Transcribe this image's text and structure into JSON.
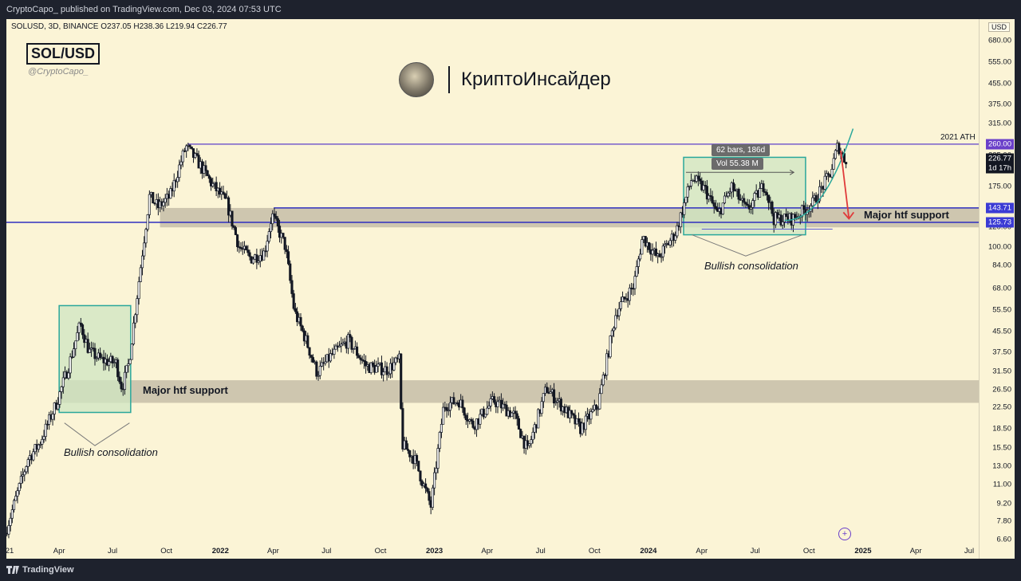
{
  "header": {
    "publish_line": "CryptoCapo_ published on TradingView.com, Dec 03, 2024 07:53 UTC"
  },
  "symbol": {
    "info": "SOLUSD, 3D, BINANCE  O237.05  H238.36  L219.94  C226.77",
    "badge": "SOL/USD",
    "handle": "@CryptoCapo_"
  },
  "brand": {
    "name": "КриптоИнсайдер",
    "avatar_icon": "portrait-avatar-icon"
  },
  "footer": {
    "logo": "TradingView",
    "logo_icon": "tradingview-logo-icon"
  },
  "colors": {
    "background": "#fbf4d6",
    "bull_candle": "#ffffff",
    "bear_candle": "#131722",
    "support_zone": "#c9c1ab",
    "consolidation_box": "#cfe6c1",
    "consolidation_border": "#2aa79b",
    "ath_line": "#5c3fc9",
    "support_line": "#2f2fbf",
    "arrow": "#e03a3a",
    "curve": "#2aa79b",
    "tag_ath": "#6a3fc9",
    "tag_price": "#131722",
    "tag_support": "#3b3bd4"
  },
  "chart_data": {
    "type": "candlestick",
    "title": "",
    "scale": "log",
    "price_axis": {
      "currency": "USD",
      "ticks": [
        6.6,
        7.8,
        9.2,
        11.0,
        13.0,
        15.5,
        18.5,
        22.5,
        26.5,
        31.5,
        37.5,
        45.5,
        55.5,
        68.0,
        84.0,
        100.0,
        120.0,
        175.0,
        235.0,
        315.0,
        375.0,
        455.0,
        555.0,
        680.0
      ],
      "tick_labels": [
        "6.60",
        "7.80",
        "9.20",
        "11.00",
        "13.00",
        "15.50",
        "18.50",
        "22.50",
        "26.50",
        "31.50",
        "37.50",
        "45.50",
        "55.50",
        "68.00",
        "84.00",
        "100.00",
        "120.00",
        "175.00",
        "235.00",
        "315.00",
        "375.00",
        "455.00",
        "555.00",
        "680.00"
      ]
    },
    "time_axis": {
      "labels": [
        "21",
        "Apr",
        "Jul",
        "Oct",
        "2022",
        "Apr",
        "Jul",
        "Oct",
        "2023",
        "Apr",
        "Jul",
        "Oct",
        "2024",
        "Apr",
        "Jul",
        "Oct",
        "2025",
        "Apr",
        "Jul"
      ],
      "dates": [
        "2021-01-01",
        "2021-04-01",
        "2021-07-01",
        "2021-10-01",
        "2022-01-01",
        "2022-04-01",
        "2022-07-01",
        "2022-10-01",
        "2023-01-01",
        "2023-04-01",
        "2023-07-01",
        "2023-10-01",
        "2024-01-01",
        "2024-04-01",
        "2024-07-01",
        "2024-10-01",
        "2025-01-01",
        "2025-04-01",
        "2025-07-01"
      ]
    },
    "price_path": [
      [
        "2021-01-02",
        7.0
      ],
      [
        "2021-02-10",
        14.0
      ],
      [
        "2021-03-01",
        16.0
      ],
      [
        "2021-04-01",
        24.0
      ],
      [
        "2021-04-20",
        33.0
      ],
      [
        "2021-05-10",
        49.0
      ],
      [
        "2021-05-25",
        38.0
      ],
      [
        "2021-06-15",
        35.0
      ],
      [
        "2021-07-10",
        34.0
      ],
      [
        "2021-07-20",
        27.0
      ],
      [
        "2021-08-01",
        34.0
      ],
      [
        "2021-08-20",
        80.0
      ],
      [
        "2021-09-05",
        160.0
      ],
      [
        "2021-09-20",
        145.0
      ],
      [
        "2021-10-10",
        160.0
      ],
      [
        "2021-11-06",
        255.0
      ],
      [
        "2021-11-30",
        215.0
      ],
      [
        "2021-12-20",
        180.0
      ],
      [
        "2022-01-15",
        150.0
      ],
      [
        "2022-02-05",
        100.0
      ],
      [
        "2022-02-25",
        90.0
      ],
      [
        "2022-03-20",
        95.0
      ],
      [
        "2022-04-02",
        135.0
      ],
      [
        "2022-04-25",
        100.0
      ],
      [
        "2022-05-10",
        55.0
      ],
      [
        "2022-05-30",
        42.0
      ],
      [
        "2022-06-18",
        31.0
      ],
      [
        "2022-07-10",
        36.0
      ],
      [
        "2022-08-10",
        42.0
      ],
      [
        "2022-09-10",
        33.0
      ],
      [
        "2022-10-15",
        32.0
      ],
      [
        "2022-11-05",
        35.0
      ],
      [
        "2022-11-10",
        16.0
      ],
      [
        "2022-12-01",
        14.0
      ],
      [
        "2022-12-29",
        9.0
      ],
      [
        "2023-01-20",
        23.0
      ],
      [
        "2023-02-15",
        24.0
      ],
      [
        "2023-03-10",
        19.0
      ],
      [
        "2023-04-15",
        24.0
      ],
      [
        "2023-05-20",
        21.0
      ],
      [
        "2023-06-12",
        15.0
      ],
      [
        "2023-07-14",
        27.0
      ],
      [
        "2023-08-15",
        22.0
      ],
      [
        "2023-09-10",
        18.5
      ],
      [
        "2023-10-10",
        23.0
      ],
      [
        "2023-11-10",
        55.0
      ],
      [
        "2023-12-10",
        70.0
      ],
      [
        "2023-12-25",
        110.0
      ],
      [
        "2024-01-20",
        90.0
      ],
      [
        "2024-02-20",
        115.0
      ],
      [
        "2024-03-18",
        190.0
      ],
      [
        "2024-04-10",
        170.0
      ],
      [
        "2024-05-01",
        135.0
      ],
      [
        "2024-05-25",
        175.0
      ],
      [
        "2024-06-20",
        140.0
      ],
      [
        "2024-07-20",
        180.0
      ],
      [
        "2024-08-05",
        130.0
      ],
      [
        "2024-09-06",
        130.0
      ],
      [
        "2024-10-10",
        150.0
      ],
      [
        "2024-11-10",
        200.0
      ],
      [
        "2024-11-22",
        258.0
      ],
      [
        "2024-12-03",
        226.77
      ]
    ],
    "ohlc_last": {
      "open": 237.05,
      "high": 238.36,
      "low": 219.94,
      "close": 226.77
    },
    "price_tags": [
      {
        "label": "260.00",
        "value": 260.0,
        "color_key": "tag_ath"
      },
      {
        "label": "226.77",
        "value": 226.77,
        "color_key": "tag_price",
        "sublabel": "1d 17h"
      },
      {
        "label": "143.71",
        "value": 143.71,
        "color_key": "tag_support"
      },
      {
        "label": "125.73",
        "value": 125.73,
        "color_key": "tag_support"
      }
    ],
    "annotations": {
      "ath_label": "2021 ATH",
      "major_support_label": "Major htf support",
      "bullish_consolidation_label": "Bullish consolidation",
      "measure_tooltip_line1": "62 bars, 186d",
      "measure_tooltip_line2": "Vol 55.38 M"
    },
    "zones": {
      "upper_support": {
        "low": 120.0,
        "high": 143.71,
        "start": "2021-09-20",
        "end": "2025-07-31"
      },
      "lower_support": {
        "low": 23.5,
        "high": 29.0,
        "start": "2021-04-01",
        "end": "2025-07-31"
      },
      "box_2021": {
        "low": 21.5,
        "high": 58.0,
        "start": "2021-04-01",
        "end": "2021-08-01"
      },
      "box_2024": {
        "low": 112.0,
        "high": 230.0,
        "start": "2024-03-01",
        "end": "2024-09-25"
      }
    }
  }
}
